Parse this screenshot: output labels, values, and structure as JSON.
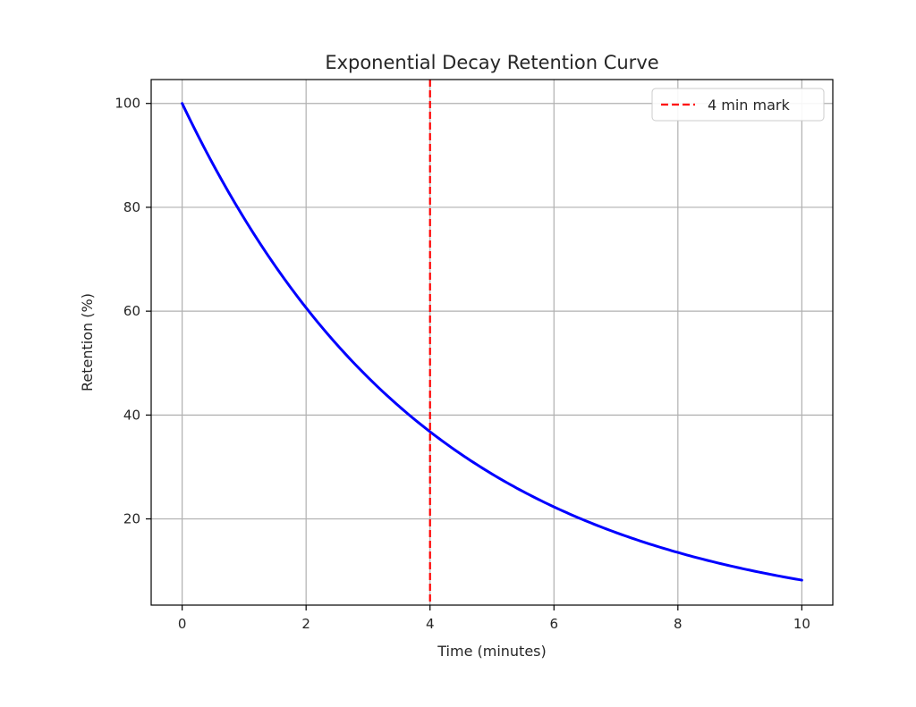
{
  "chart_data": {
    "type": "line",
    "title": "Exponential Decay Retention Curve",
    "xlabel": "Time (minutes)",
    "ylabel": "Retention (%)",
    "xlim": [
      -0.5,
      10.5
    ],
    "ylim": [
      3.4,
      104.6
    ],
    "xticks": [
      0,
      2,
      4,
      6,
      8,
      10
    ],
    "yticks": [
      20,
      40,
      60,
      80,
      100
    ],
    "grid": true,
    "legend_position": "top-right",
    "series": [
      {
        "color": "#0000ff",
        "style": "solid",
        "function": "100*exp(-0.25*t)",
        "x": [
          0,
          0.5,
          1,
          1.5,
          2,
          2.5,
          3,
          3.5,
          4,
          4.5,
          5,
          5.5,
          6,
          6.5,
          7,
          7.5,
          8,
          8.5,
          9,
          9.5,
          10
        ],
        "y": [
          100,
          88.2,
          77.9,
          68.7,
          60.7,
          53.5,
          47.2,
          41.7,
          36.8,
          32.5,
          28.7,
          25.3,
          22.3,
          19.7,
          17.4,
          15.3,
          13.5,
          11.9,
          10.5,
          9.3,
          8.2
        ]
      }
    ],
    "vlines": [
      {
        "name": "4 min mark",
        "x": 4,
        "color": "#ff0000",
        "style": "dashed"
      }
    ]
  }
}
